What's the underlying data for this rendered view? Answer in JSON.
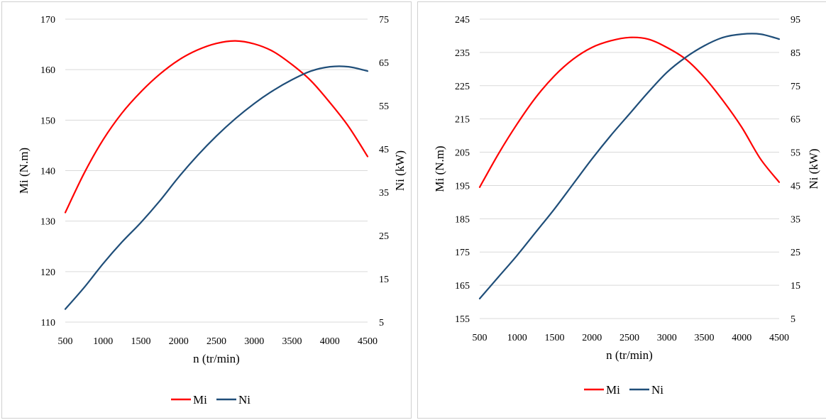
{
  "colors": {
    "Mi": "#ff0000",
    "Ni": "#1f4e79",
    "grid": "#d9d9d9"
  },
  "chart_data": [
    {
      "type": "line",
      "xlabel": "n (tr/min)",
      "ylabel": "Mi (N.m)",
      "y2label": "Ni (kW)",
      "xlim": [
        500,
        4500
      ],
      "xticks": [
        "500",
        "1000",
        "1500",
        "2000",
        "2500",
        "3000",
        "3500",
        "4000",
        "4500"
      ],
      "ylim": [
        110,
        170
      ],
      "yticks": [
        "110",
        "120",
        "130",
        "140",
        "150",
        "160",
        "170"
      ],
      "y2lim": [
        5,
        75
      ],
      "y2ticks": [
        "5",
        "15",
        "25",
        "35",
        "45",
        "55",
        "65",
        "75"
      ],
      "grid": true,
      "legend": "bottom",
      "series": [
        {
          "name": "Mi",
          "axis": "left",
          "x": [
            500,
            750,
            1000,
            1250,
            1500,
            1750,
            2000,
            2250,
            2500,
            2750,
            3000,
            3250,
            3500,
            3750,
            4000,
            4250,
            4500
          ],
          "values": [
            131.7,
            139.5,
            146.1,
            151.4,
            155.6,
            159.1,
            161.9,
            163.9,
            165.2,
            165.7,
            165.1,
            163.6,
            161.0,
            157.8,
            153.5,
            148.7,
            142.8
          ]
        },
        {
          "name": "Ni",
          "axis": "right",
          "x": [
            500,
            750,
            1000,
            1250,
            1500,
            1750,
            2000,
            2250,
            2500,
            2750,
            3000,
            3250,
            3500,
            3750,
            4000,
            4250,
            4500
          ],
          "values": [
            8.0,
            13.0,
            18.5,
            23.5,
            28.0,
            33.0,
            38.5,
            43.5,
            48.0,
            52.0,
            55.5,
            58.5,
            61.0,
            63.0,
            64.0,
            64.0,
            63.0
          ]
        }
      ]
    },
    {
      "type": "line",
      "xlabel": "n (tr/min)",
      "ylabel": "Mi (N.m)",
      "y2label": "Ni (kW)",
      "xlim": [
        500,
        4500
      ],
      "xticks": [
        "500",
        "1000",
        "1500",
        "2000",
        "2500",
        "3000",
        "3500",
        "4000",
        "4500"
      ],
      "ylim": [
        155,
        245
      ],
      "yticks": [
        "155",
        "165",
        "175",
        "185",
        "195",
        "205",
        "215",
        "225",
        "235",
        "245"
      ],
      "y2lim": [
        5,
        95
      ],
      "y2ticks": [
        "5",
        "15",
        "25",
        "35",
        "45",
        "55",
        "65",
        "75",
        "85",
        "95"
      ],
      "grid": true,
      "legend": "bottom",
      "series": [
        {
          "name": "Mi",
          "axis": "left",
          "x": [
            500,
            750,
            1000,
            1250,
            1500,
            1750,
            2000,
            2250,
            2500,
            2750,
            3000,
            3250,
            3500,
            3750,
            4000,
            4250,
            4500
          ],
          "values": [
            194.5,
            204.5,
            213.5,
            221.5,
            228.0,
            233.0,
            236.5,
            238.5,
            239.5,
            239.0,
            236.5,
            233.0,
            227.5,
            220.5,
            212.5,
            203.0,
            196.0
          ]
        },
        {
          "name": "Ni",
          "axis": "right",
          "x": [
            500,
            750,
            1000,
            1250,
            1500,
            1750,
            2000,
            2250,
            2500,
            2750,
            3000,
            3250,
            3500,
            3750,
            4000,
            4250,
            4500
          ],
          "values": [
            11.0,
            17.5,
            24.0,
            31.0,
            38.0,
            45.5,
            53.0,
            60.0,
            66.5,
            73.0,
            79.0,
            83.5,
            87.0,
            89.5,
            90.5,
            90.5,
            89.0
          ]
        }
      ]
    }
  ]
}
